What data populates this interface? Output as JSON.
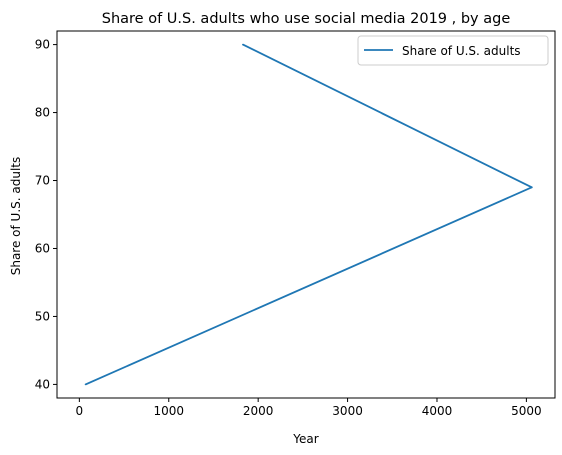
{
  "chart_data": {
    "type": "line",
    "title": "Share of U.S. adults who use social media 2019 , by age",
    "xlabel": "Year",
    "ylabel": "Share of U.S. adults",
    "xlim": [
      -250,
      5320
    ],
    "ylim": [
      38,
      92
    ],
    "xticks": [
      0,
      1000,
      2000,
      3000,
      4000,
      5000
    ],
    "yticks": [
      40,
      50,
      60,
      70,
      80,
      90
    ],
    "grid": false,
    "legend_position": "upper right",
    "series": [
      {
        "name": "Share of U.S. adults",
        "color": "#1f77b4",
        "x": [
          1830,
          5060,
          70
        ],
        "y": [
          90,
          69,
          40
        ]
      }
    ]
  }
}
